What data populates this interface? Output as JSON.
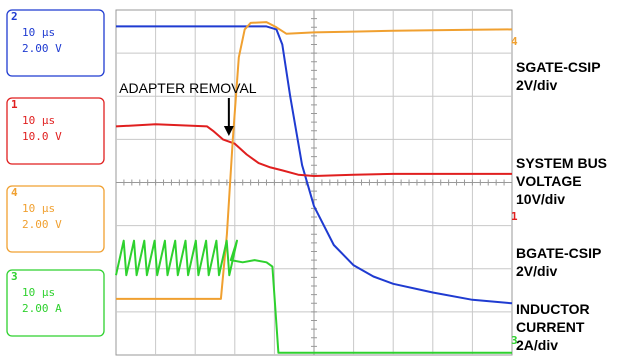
{
  "chart_data": {
    "type": "line",
    "title": "",
    "xlabel": "",
    "ylabel": "",
    "xlim": [
      0,
      10
    ],
    "ylim": [
      0,
      8
    ],
    "grid": true,
    "channels": [
      {
        "id": "2",
        "timebase": "10 μs",
        "scale": "2.00 V",
        "color": "#1f3bd1"
      },
      {
        "id": "1",
        "timebase": "10 μs",
        "scale": "10.0 V",
        "color": "#e01f1f"
      },
      {
        "id": "4",
        "timebase": "10 μs",
        "scale": "2.00 V",
        "color": "#f0a030"
      },
      {
        "id": "3",
        "timebase": "10 μs",
        "scale": "2.00 A",
        "color": "#2ed12e"
      }
    ],
    "series": [
      {
        "channel": "2",
        "color": "#1f3bd1",
        "label_lines": [
          "BGATE-CSIP",
          "2V/div"
        ],
        "points": [
          [
            0,
            7.62
          ],
          [
            2.5,
            7.62
          ],
          [
            3.2,
            7.62
          ],
          [
            3.8,
            7.62
          ],
          [
            4.05,
            7.55
          ],
          [
            4.2,
            7.2
          ],
          [
            4.4,
            6.0
          ],
          [
            4.7,
            4.4
          ],
          [
            5.0,
            3.45
          ],
          [
            5.5,
            2.55
          ],
          [
            6.0,
            2.08
          ],
          [
            6.5,
            1.82
          ],
          [
            7.0,
            1.65
          ],
          [
            8.0,
            1.45
          ],
          [
            9.0,
            1.28
          ],
          [
            10.0,
            1.2
          ]
        ]
      },
      {
        "channel": "1",
        "color": "#e01f1f",
        "label_lines": [
          "SYSTEM BUS",
          "VOLTAGE",
          "10V/div"
        ],
        "points": [
          [
            0,
            5.3
          ],
          [
            1.0,
            5.35
          ],
          [
            2.3,
            5.3
          ],
          [
            2.45,
            5.2
          ],
          [
            2.7,
            5.0
          ],
          [
            3.0,
            4.9
          ],
          [
            3.3,
            4.65
          ],
          [
            3.6,
            4.45
          ],
          [
            3.9,
            4.35
          ],
          [
            4.2,
            4.28
          ],
          [
            4.6,
            4.18
          ],
          [
            5.0,
            4.15
          ],
          [
            6.0,
            4.18
          ],
          [
            7.0,
            4.2
          ],
          [
            8.0,
            4.2
          ],
          [
            9.0,
            4.2
          ],
          [
            10.0,
            4.2
          ]
        ]
      },
      {
        "channel": "4",
        "color": "#f0a030",
        "label_lines": [
          "SGATE-CSIP",
          "2V/div"
        ],
        "points": [
          [
            0,
            1.3
          ],
          [
            1.0,
            1.3
          ],
          [
            2.0,
            1.3
          ],
          [
            2.65,
            1.3
          ],
          [
            2.8,
            2.8
          ],
          [
            2.95,
            5.0
          ],
          [
            3.1,
            6.9
          ],
          [
            3.25,
            7.55
          ],
          [
            3.4,
            7.7
          ],
          [
            3.8,
            7.72
          ],
          [
            4.05,
            7.6
          ],
          [
            4.3,
            7.45
          ],
          [
            5.0,
            7.48
          ],
          [
            6.0,
            7.5
          ],
          [
            7.0,
            7.52
          ],
          [
            8.0,
            7.53
          ],
          [
            9.0,
            7.54
          ],
          [
            10.0,
            7.55
          ]
        ]
      },
      {
        "channel": "3",
        "color": "#2ed12e",
        "label_lines": [
          "INDUCTOR",
          "CURRENT",
          "2A/div"
        ],
        "ripple": {
          "x_start": 0.0,
          "x_end": 2.9,
          "period": 0.26,
          "high": 2.65,
          "low": 1.85
        },
        "points": [
          [
            2.9,
            2.2
          ],
          [
            3.2,
            2.15
          ],
          [
            3.5,
            2.2
          ],
          [
            3.8,
            2.15
          ],
          [
            3.95,
            2.05
          ],
          [
            4.1,
            0.05
          ],
          [
            4.3,
            0.05
          ],
          [
            5.0,
            0.05
          ],
          [
            6.0,
            0.05
          ],
          [
            7.0,
            0.05
          ],
          [
            8.0,
            0.05
          ],
          [
            9.0,
            0.05
          ],
          [
            10.0,
            0.05
          ]
        ]
      }
    ],
    "annotation": {
      "text": "ADAPTER REMOVAL",
      "x": 2.85,
      "y": 5.5
    }
  }
}
